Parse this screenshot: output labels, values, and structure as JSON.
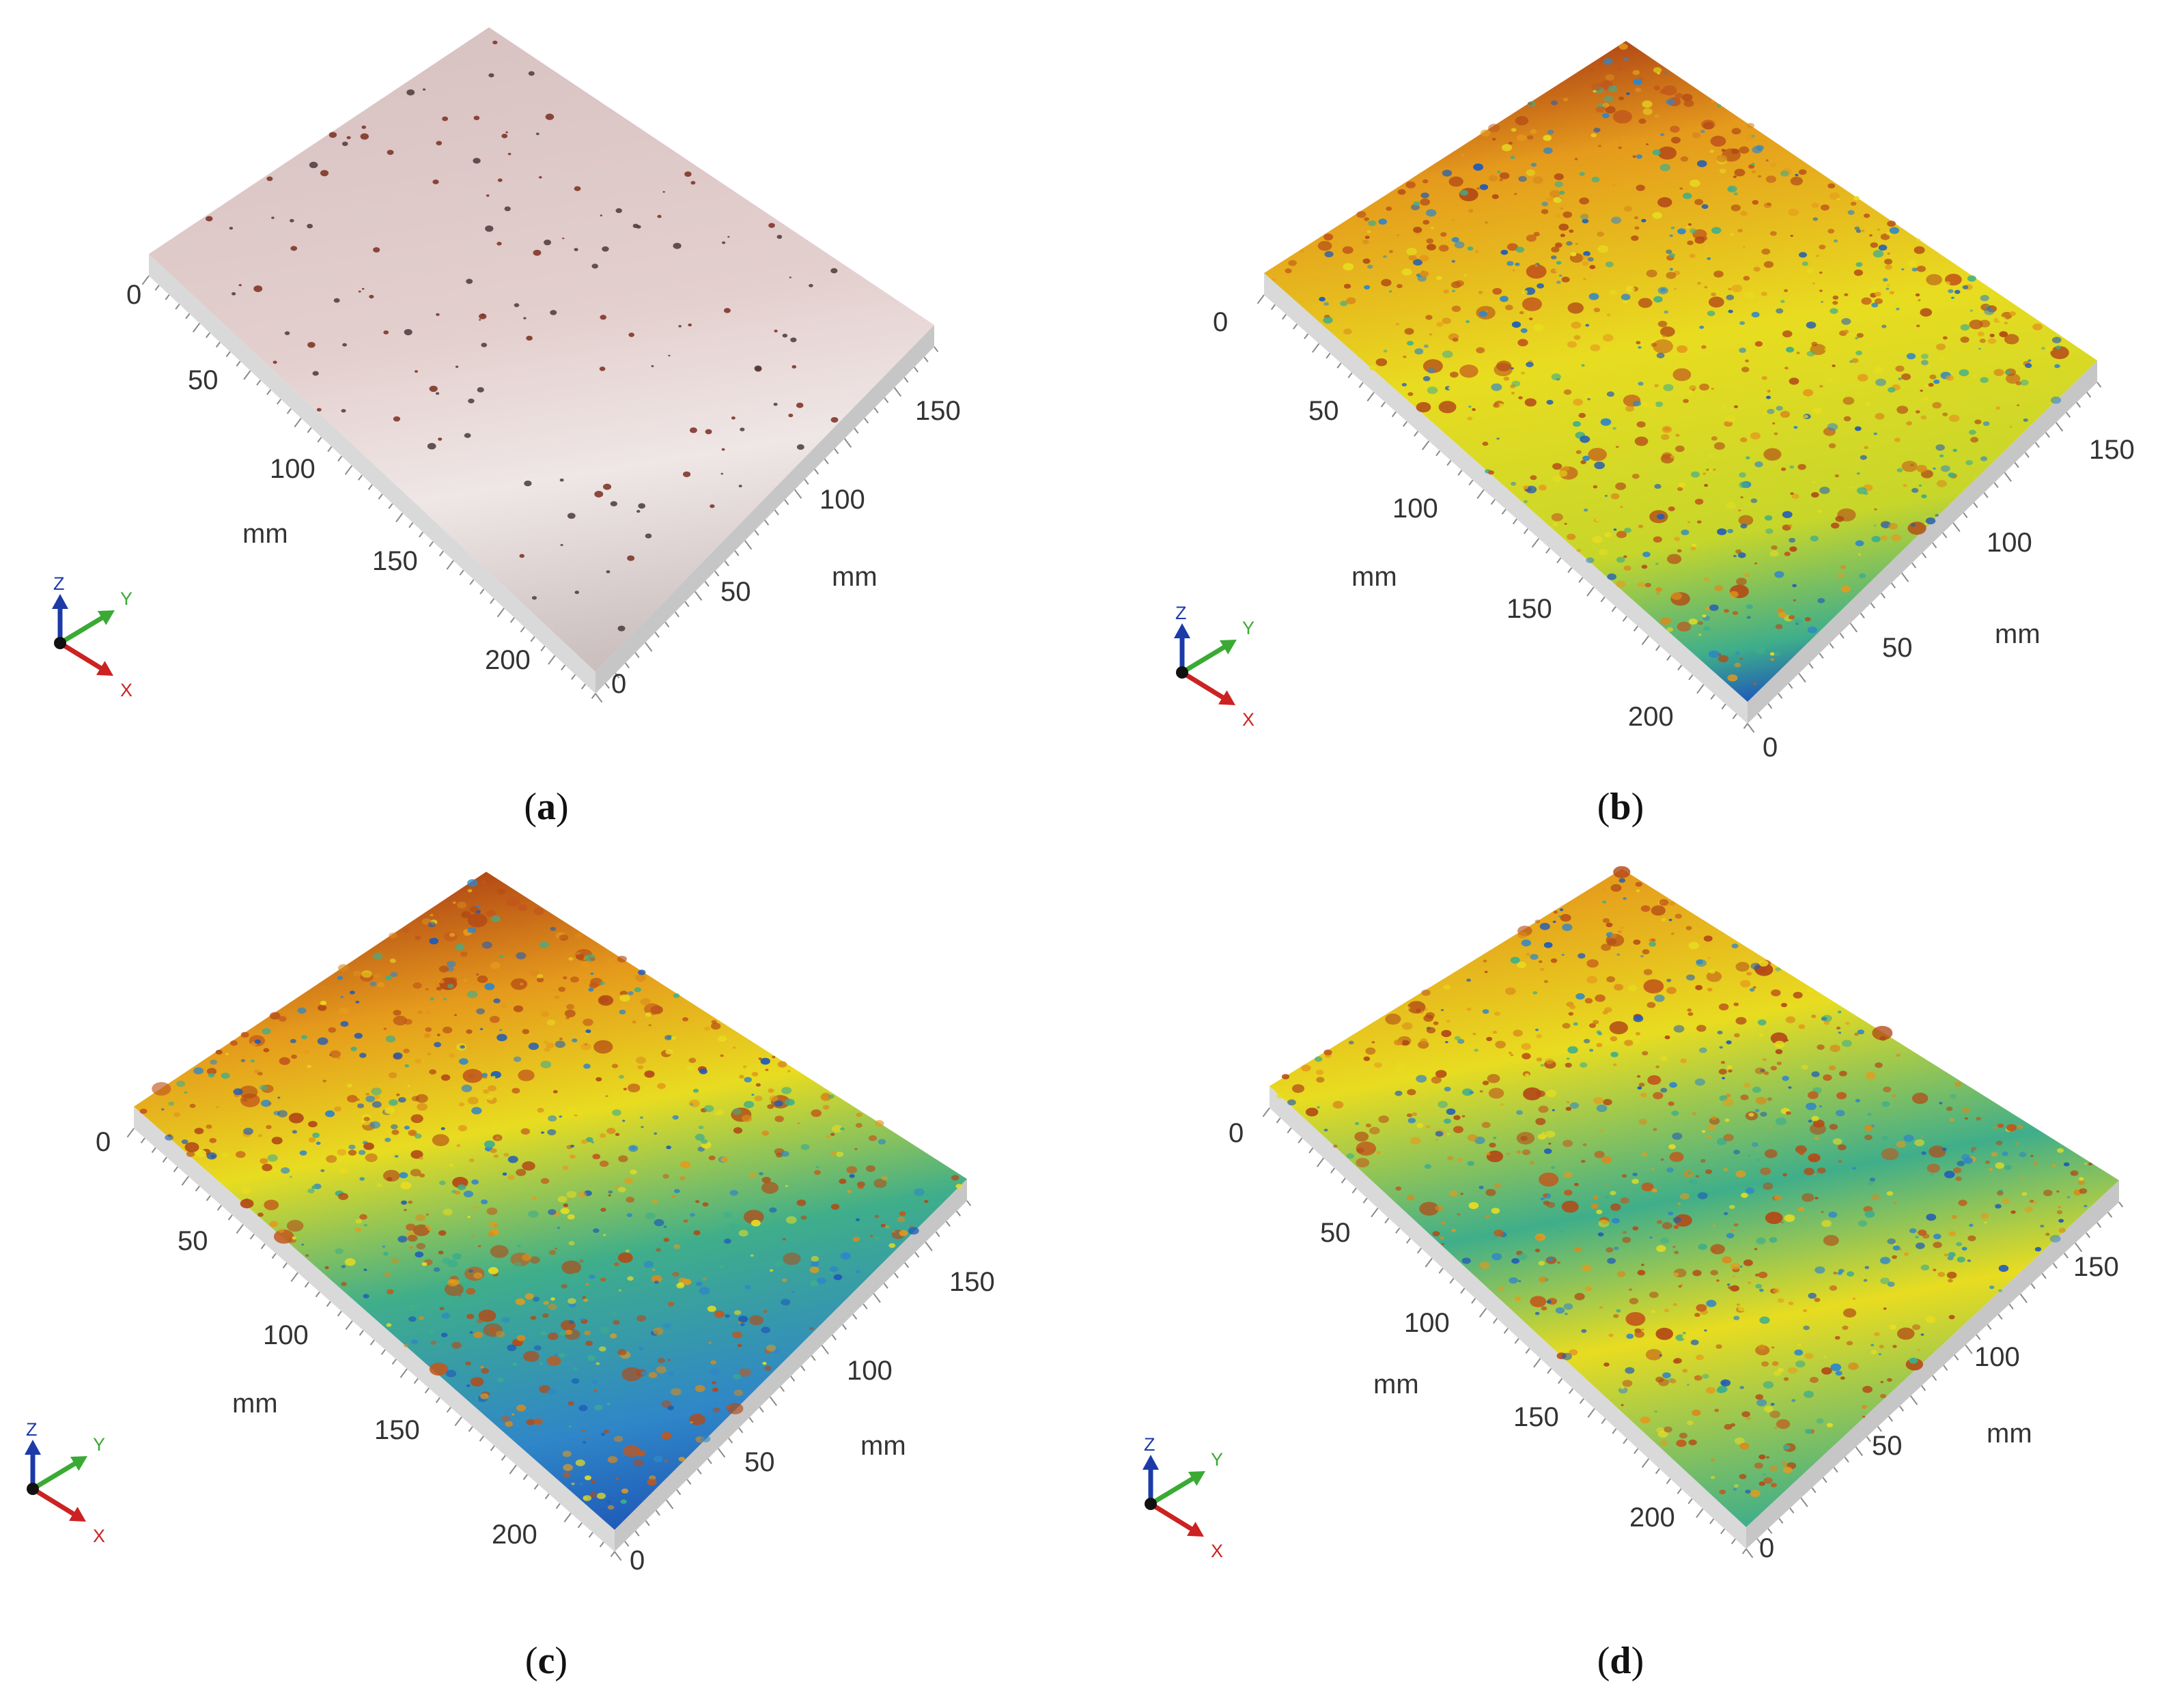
{
  "panels": [
    {
      "id": "a",
      "label": "a",
      "surface": "photo",
      "ticks_left": [
        "0",
        "50",
        "100",
        "150",
        "200"
      ],
      "ticks_right": [
        "0",
        "50",
        "100",
        "150"
      ],
      "unit_left": "mm",
      "unit_right": "mm"
    },
    {
      "id": "b",
      "label": "b",
      "surface": "height-map",
      "ticks_left": [
        "0",
        "50",
        "100",
        "150",
        "200"
      ],
      "ticks_right": [
        "0",
        "50",
        "100",
        "150"
      ],
      "unit_left": "mm",
      "unit_right": "mm"
    },
    {
      "id": "c",
      "label": "c",
      "surface": "height-map",
      "ticks_left": [
        "0",
        "50",
        "100",
        "150",
        "200"
      ],
      "ticks_right": [
        "0",
        "50",
        "100",
        "150"
      ],
      "unit_left": "mm",
      "unit_right": "mm"
    },
    {
      "id": "d",
      "label": "d",
      "surface": "height-map",
      "ticks_left": [
        "0",
        "50",
        "100",
        "150",
        "200"
      ],
      "ticks_right": [
        "0",
        "50",
        "100",
        "150"
      ],
      "unit_left": "mm",
      "unit_right": "mm"
    }
  ],
  "triad": {
    "z": "Z",
    "y": "Y",
    "x": "X",
    "colors": {
      "z": "#1c3aa8",
      "y": "#3aaa35",
      "x": "#cc2222"
    }
  },
  "colors": {
    "photo_surface": "#e3cfcd",
    "low": "#1f5bb8",
    "mid": "#3fae8a",
    "high_mid": "#e8dc20",
    "high": "#e59a1c",
    "peak": "#b34a16",
    "base": "#d6d6d6"
  }
}
